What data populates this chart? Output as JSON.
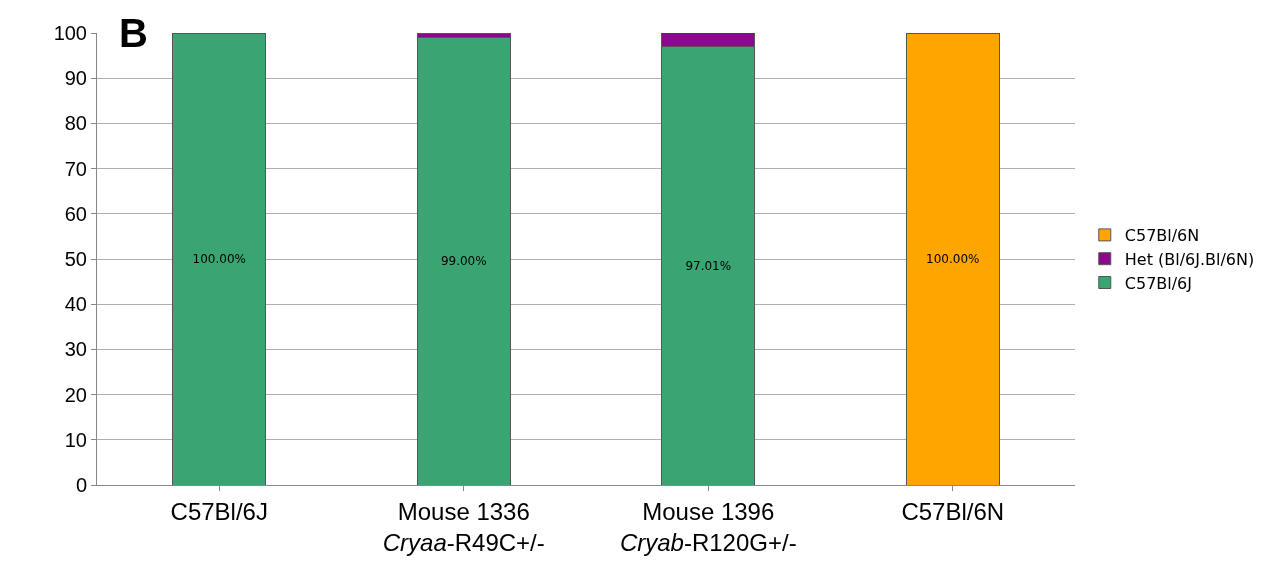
{
  "chart_data": {
    "type": "bar",
    "stacked": true,
    "categories": [
      "C57Bl/6J",
      "Mouse 1336\nCryaa-R49C+/-",
      "Mouse 1396\nCryab-R120G+/-",
      "C57Bl/6N"
    ],
    "series": [
      {
        "name": "C57Bl/6J",
        "color": "#3aa573",
        "values": [
          100,
          99,
          97.01,
          null
        ],
        "value_labels": [
          "100.00%",
          "99.00%",
          "97.01%",
          null
        ]
      },
      {
        "name": "Het (Bl/6J.Bl/6N)",
        "color": "#8b0a8b",
        "values": [
          null,
          1,
          3,
          null
        ],
        "value_labels": [
          null,
          null,
          null,
          null
        ]
      },
      {
        "name": "C57Bl/6N",
        "color": "#ffa500",
        "values": [
          null,
          null,
          null,
          100
        ],
        "value_labels": [
          null,
          null,
          null,
          "100.00%"
        ]
      }
    ],
    "ylim": [
      0,
      100
    ],
    "yticks": [
      0,
      10,
      20,
      30,
      40,
      50,
      60,
      70,
      80,
      90,
      100
    ],
    "grid": "y",
    "legend": "right",
    "annotations": [
      "B"
    ]
  }
}
